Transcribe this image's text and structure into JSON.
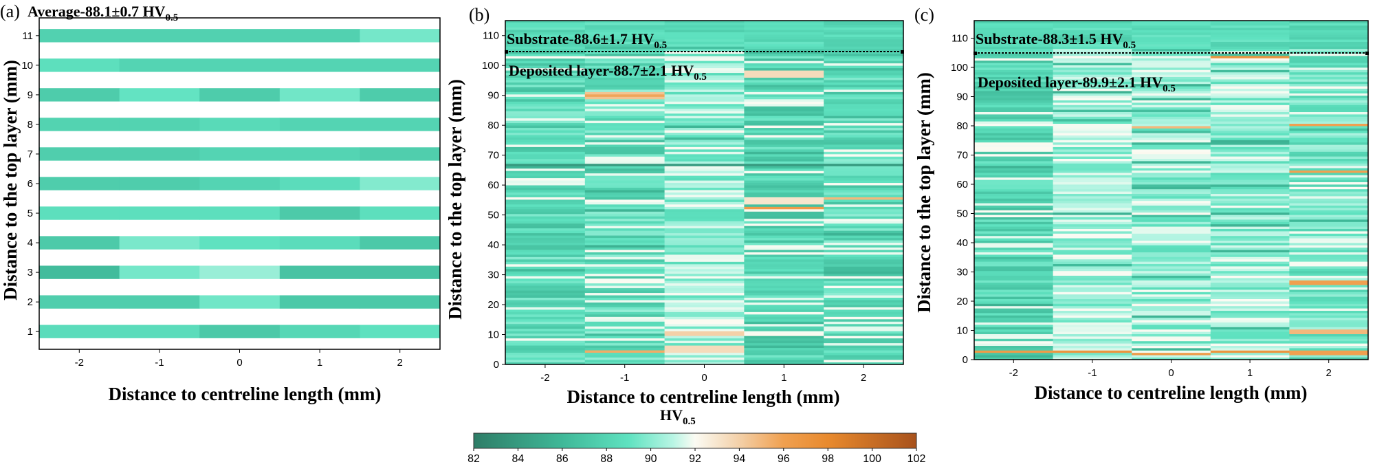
{
  "chart_data": [
    {
      "panel": "(a)",
      "type": "heatmap",
      "title": "Average-88.1±0.7 HV",
      "title_subscript": "0.5",
      "xlabel": "Distance to centreline length (mm)",
      "ylabel": "Distance to the top layer (mm)",
      "xlim": [
        -2.5,
        2.5
      ],
      "ylim": [
        0.4,
        11.6
      ],
      "x_ticks": [
        "-2",
        "-1",
        "0",
        "1",
        "2"
      ],
      "y_ticks": [
        "1",
        "2",
        "3",
        "4",
        "5",
        "6",
        "7",
        "8",
        "9",
        "10",
        "11"
      ],
      "x": [
        -2,
        -1,
        0,
        1,
        2
      ],
      "y": [
        1,
        2,
        3,
        4,
        5,
        6,
        7,
        8,
        9,
        10,
        11
      ],
      "row_height": 0.45,
      "values": [
        [
          88.6,
          88.6,
          87.2,
          88.2,
          88.9
        ],
        [
          87.6,
          87.6,
          89.4,
          87.2,
          87.2
        ],
        [
          86.3,
          89.5,
          90.3,
          86.8,
          86.8
        ],
        [
          87.3,
          89.6,
          89.0,
          88.6,
          87.2
        ],
        [
          88.8,
          88.8,
          88.8,
          87.3,
          88.8
        ],
        [
          87.5,
          87.5,
          88.0,
          88.6,
          89.8
        ],
        [
          87.6,
          87.6,
          88.0,
          88.0,
          87.6
        ],
        [
          87.9,
          87.9,
          88.4,
          88.0,
          88.0
        ],
        [
          87.4,
          89.1,
          87.4,
          89.4,
          87.4
        ],
        [
          88.8,
          88.0,
          88.0,
          88.0,
          88.0
        ],
        [
          87.8,
          87.8,
          87.8,
          87.8,
          89.5
        ]
      ]
    },
    {
      "panel": "(b)",
      "type": "heatmap",
      "xlabel": "Distance to centreline length (mm)",
      "ylabel": "Distance to the top layer (mm)",
      "xlim": [
        -2.5,
        2.5
      ],
      "ylim": [
        0,
        115
      ],
      "x_ticks": [
        "-2",
        "-1",
        "0",
        "1",
        "2"
      ],
      "y_ticks": [
        "0",
        "10",
        "20",
        "30",
        "40",
        "50",
        "60",
        "70",
        "80",
        "90",
        "100",
        "110"
      ],
      "x": [
        -2,
        -1,
        0,
        1,
        2
      ],
      "y_step": 0.8,
      "interface_y": 106,
      "substrate_label": "Substrate-88.6±1.7 HV",
      "substrate_subscript": "0.5",
      "deposited_label": "Deposited layer-88.7±2.1 HV",
      "deposited_subscript": "0.5",
      "base_values": [
        88.3,
        88.6,
        90.2,
        88.0,
        88.4
      ],
      "dark_lines_y": [
        66.5
      ],
      "soft_anomalies": [
        [
          1,
          89.5,
          94.5
        ],
        [
          2,
          10,
          94.0
        ],
        [
          2,
          5,
          93.5
        ],
        [
          3,
          97,
          93.5
        ],
        [
          3,
          54,
          93.0
        ]
      ],
      "hot_spots": [
        [
          1,
          89.5,
          95.8
        ],
        [
          1,
          4,
          95.5
        ],
        [
          3,
          52,
          96.5
        ],
        [
          4,
          55,
          95.0
        ]
      ]
    },
    {
      "panel": "(c)",
      "type": "heatmap",
      "xlabel": "Distance to centreline length (mm)",
      "ylabel": "Distance to the top layer (mm)",
      "xlim": [
        -2.5,
        2.5
      ],
      "ylim": [
        0,
        116
      ],
      "x_ticks": [
        "-2",
        "-1",
        "0",
        "1",
        "2"
      ],
      "y_ticks": [
        "0",
        "10",
        "20",
        "30",
        "40",
        "50",
        "60",
        "70",
        "80",
        "90",
        "100",
        "110"
      ],
      "x": [
        -2,
        -1,
        0,
        1,
        2
      ],
      "y_step": 0.8,
      "interface_y": 106,
      "substrate_label": "Substrate-88.3±1.5 HV",
      "substrate_subscript": "0.5",
      "deposited_label": "Deposited layer-89.9±2.1 HV",
      "deposited_subscript": "0.5",
      "base_values": [
        88.0,
        90.5,
        90.0,
        90.0,
        89.3
      ],
      "dark_lines_y": [],
      "soft_anomalies": [],
      "hot_spots": [
        [
          3,
          103,
          97.0
        ],
        [
          2,
          79,
          95.0
        ],
        [
          4,
          80,
          96.0
        ],
        [
          4,
          64,
          96.0
        ],
        [
          4,
          26,
          96.0
        ],
        [
          4,
          9,
          95.0
        ],
        [
          1,
          2.5,
          97.0
        ],
        [
          2,
          1.5,
          96.5
        ],
        [
          3,
          2.5,
          97.0
        ],
        [
          4,
          2,
          96.0
        ],
        [
          0,
          2.5,
          96.5
        ]
      ]
    }
  ],
  "colorbar": {
    "label": "HV",
    "label_subscript": "0.5",
    "min": 82,
    "max": 102,
    "ticks": [
      "82",
      "84",
      "86",
      "88",
      "90",
      "92",
      "94",
      "96",
      "98",
      "100",
      "102"
    ],
    "stops": [
      {
        "value": 82,
        "color": "#2e7d67"
      },
      {
        "value": 86,
        "color": "#3fb898"
      },
      {
        "value": 89,
        "color": "#5fe2c0"
      },
      {
        "value": 91,
        "color": "#b8f5e4"
      },
      {
        "value": 92,
        "color": "#fbfbf3"
      },
      {
        "value": 94,
        "color": "#f3d0a8"
      },
      {
        "value": 96,
        "color": "#f0a050"
      },
      {
        "value": 98,
        "color": "#e88a2e"
      },
      {
        "value": 102,
        "color": "#a8521c"
      }
    ]
  }
}
